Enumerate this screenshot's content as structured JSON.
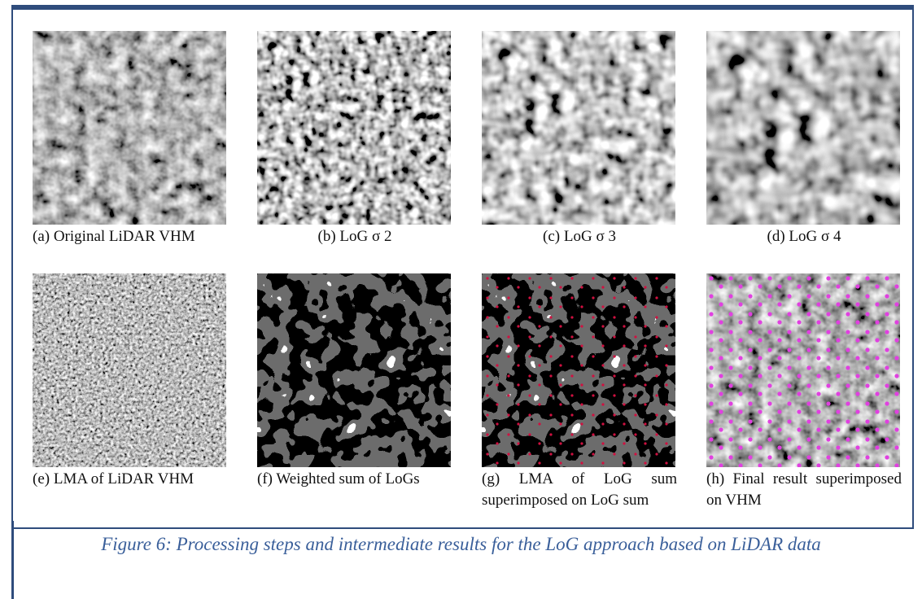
{
  "panels": [
    {
      "caption": "(a) Original LiDAR VHM"
    },
    {
      "caption": "(b) LoG σ 2"
    },
    {
      "caption": "(c) LoG σ 3"
    },
    {
      "caption": "(d) LoG σ 4"
    },
    {
      "caption": "(e) LMA of LiDAR VHM"
    },
    {
      "caption": "(f) Weighted sum of LoGs"
    },
    {
      "caption": "(g) LMA of LoG sum superimposed on LoG sum"
    },
    {
      "caption": "(h) Final result superimposed on VHM"
    }
  ],
  "figure_caption": "Figure 6: Processing steps and intermediate results for the LoG approach based on LiDAR data"
}
